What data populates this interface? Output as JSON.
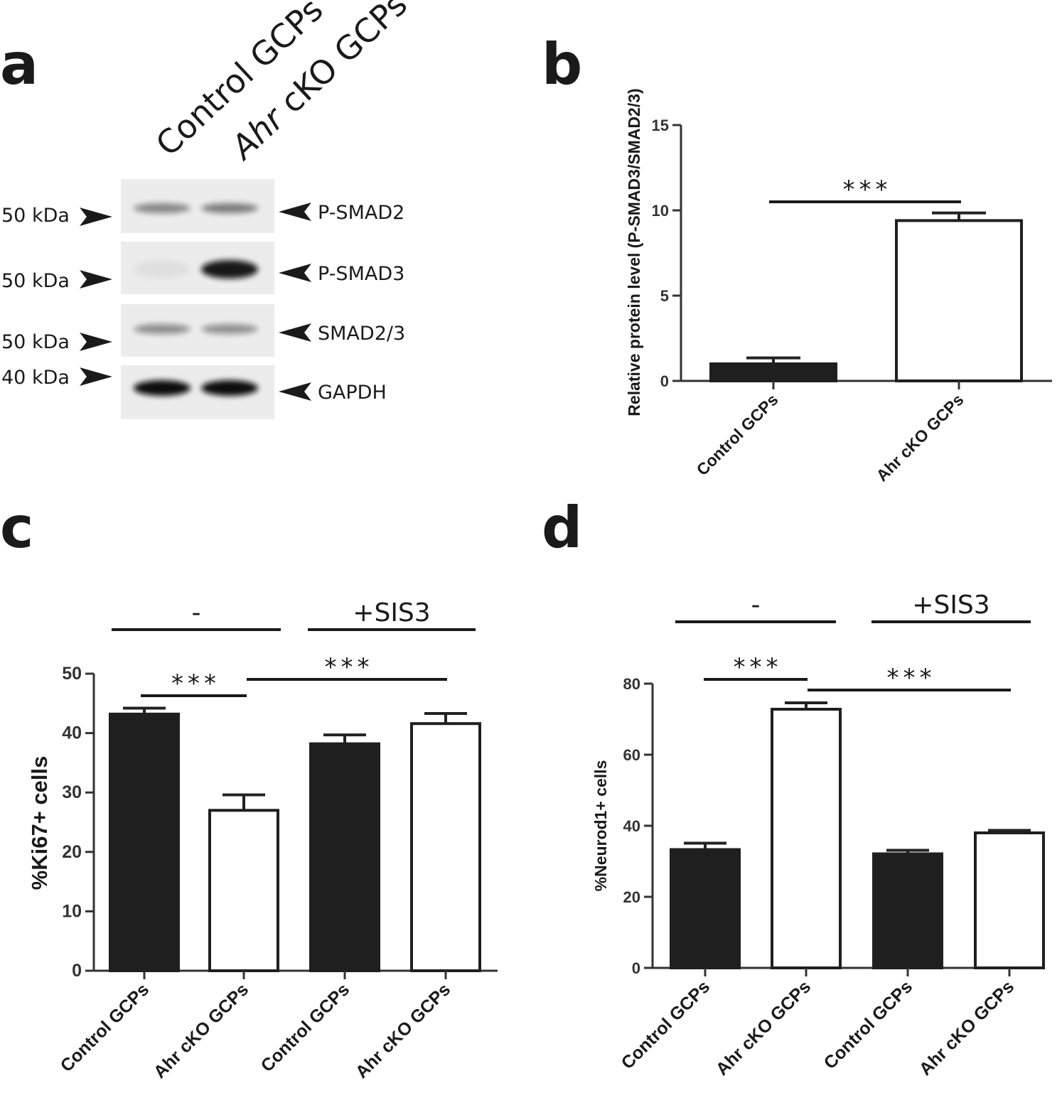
{
  "panels": {
    "a": {
      "letter": "a",
      "lanes": [
        {
          "label": "Control GCPs",
          "italic_part": "",
          "rest": ""
        },
        {
          "label": "",
          "italic_part": "Ahr",
          "rest": " cKO GCPs"
        }
      ],
      "blots": [
        {
          "marker": "50 kDa",
          "protein": "P-SMAD2",
          "intensity": [
            0.45,
            0.5
          ]
        },
        {
          "marker": "50 kDa",
          "protein": "P-SMAD3",
          "intensity": [
            0.05,
            0.95
          ]
        },
        {
          "marker": "50 kDa",
          "protein": "SMAD2/3",
          "intensity": [
            0.42,
            0.4
          ]
        },
        {
          "marker": "40 kDa",
          "protein": "GAPDH",
          "intensity": [
            1.0,
            1.0
          ]
        }
      ]
    },
    "b": {
      "letter": "b"
    },
    "c": {
      "letter": "c",
      "group_labels": [
        "-",
        "+SIS3"
      ]
    },
    "d": {
      "letter": "d",
      "group_labels": [
        "-",
        "+SIS3"
      ]
    }
  },
  "chart_data": [
    {
      "panel": "b",
      "type": "bar",
      "ylabel": "Relative protein level (P-SMAD3/SMAD2/3)",
      "ylim": [
        0,
        15
      ],
      "yticks": [
        0,
        5,
        10,
        15
      ],
      "categories": [
        "Control GCPs",
        "Ahr cKO GCPs"
      ],
      "values": [
        1.0,
        9.4
      ],
      "errors": [
        0.35,
        0.45
      ],
      "fills": [
        "#1f1f1f",
        "#ffffff"
      ],
      "significance": [
        {
          "from": 0,
          "to": 1,
          "label": "***"
        }
      ]
    },
    {
      "panel": "c",
      "type": "bar",
      "ylabel": "%Ki67+ cells",
      "ylim": [
        0,
        50
      ],
      "yticks": [
        0,
        10,
        20,
        30,
        40,
        50
      ],
      "categories": [
        "Control GCPs",
        "Ahr cKO GCPs",
        "Control GCPs",
        "Ahr cKO GCPs"
      ],
      "values": [
        43.2,
        27.0,
        38.2,
        41.6
      ],
      "errors": [
        1.0,
        2.6,
        1.5,
        1.7
      ],
      "fills": [
        "#1f1f1f",
        "#ffffff",
        "#1f1f1f",
        "#ffffff"
      ],
      "significance": [
        {
          "from": 0,
          "to": 1,
          "label": "***"
        },
        {
          "from": 1,
          "to": 3,
          "label": "***"
        }
      ],
      "groups": [
        {
          "label": "-",
          "from": 0,
          "to": 1
        },
        {
          "label": "+SIS3",
          "from": 2,
          "to": 3
        }
      ]
    },
    {
      "panel": "d",
      "type": "bar",
      "ylabel": "%Neurod1+ cells",
      "ylim": [
        0,
        80
      ],
      "yticks": [
        0,
        20,
        40,
        60,
        80
      ],
      "categories": [
        "Control GCPs",
        "Ahr cKO GCPs",
        "Control GCPs",
        "Ahr cKO GCPs"
      ],
      "values": [
        33.3,
        72.8,
        32.1,
        38.0
      ],
      "errors": [
        1.8,
        1.8,
        1.0,
        0.7
      ],
      "fills": [
        "#1f1f1f",
        "#ffffff",
        "#1f1f1f",
        "#ffffff"
      ],
      "significance": [
        {
          "from": 0,
          "to": 1,
          "label": "***"
        },
        {
          "from": 1,
          "to": 3,
          "label": "***"
        }
      ],
      "groups": [
        {
          "label": "-",
          "from": 0,
          "to": 1
        },
        {
          "label": "+SIS3",
          "from": 2,
          "to": 3
        }
      ]
    }
  ]
}
